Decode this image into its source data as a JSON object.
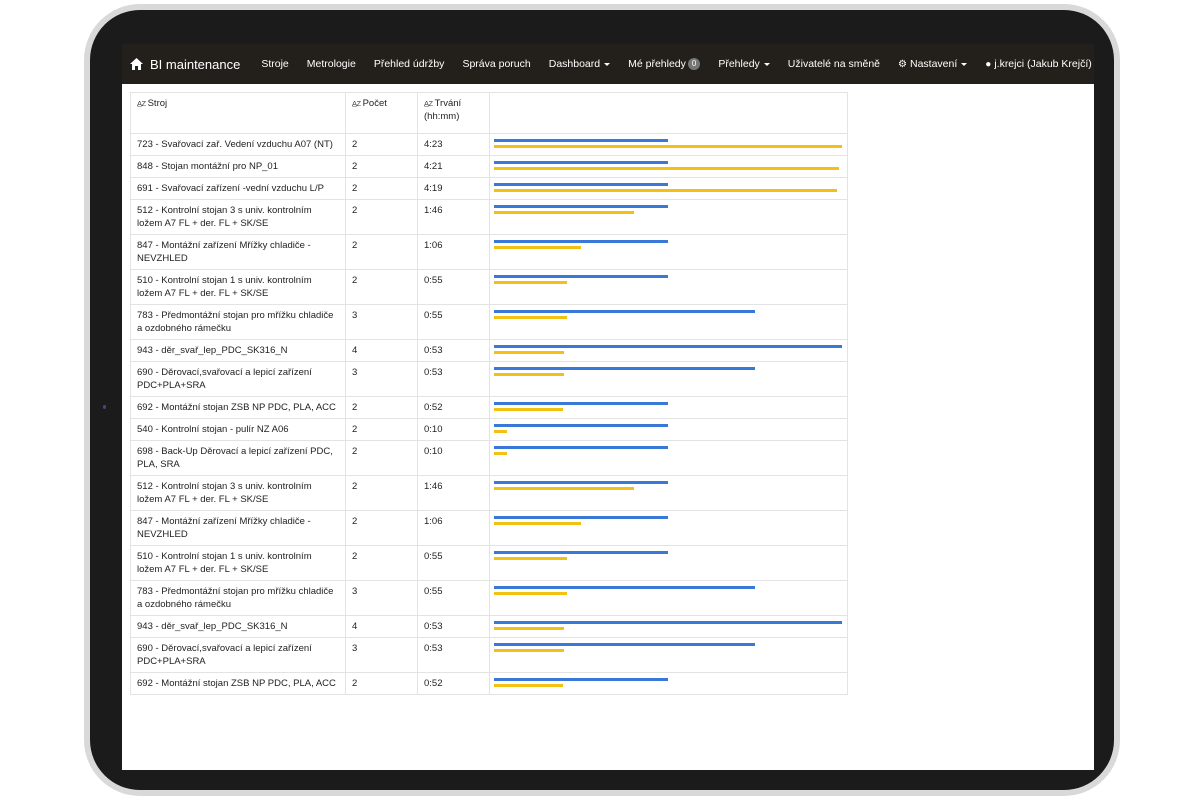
{
  "app": {
    "title": "BI maintenance"
  },
  "nav": {
    "items": [
      {
        "label": "Stroje"
      },
      {
        "label": "Metrologie"
      },
      {
        "label": "Přehled údržby"
      },
      {
        "label": "Správa poruch"
      },
      {
        "label": "Dashboard",
        "dropdown": true
      },
      {
        "label": "Mé přehledy",
        "badge": "0"
      },
      {
        "label": "Přehledy",
        "dropdown": true
      },
      {
        "label": "Uživatelé na směně"
      }
    ],
    "settings_label": "Nastavení",
    "user_label": "j.krejci (Jakub Krejčí)"
  },
  "table": {
    "sort_icon": "A̲Z",
    "headers": {
      "machine": "Stroj",
      "count": "Počet",
      "duration": "Trvání (hh:mm)"
    },
    "colors": {
      "count_bar": "#3a78d8",
      "duration_bar": "#f3c114"
    },
    "max_count": 4,
    "max_minutes": 263,
    "rows": [
      {
        "machine": "723 - Svařovací zař. Vedení vzduchu A07 (NT)",
        "count": "2",
        "duration": "4:23",
        "count_value": 2,
        "minutes": 263
      },
      {
        "machine": "848 - Stojan montážní pro NP_01",
        "count": "2",
        "duration": "4:21",
        "count_value": 2,
        "minutes": 261
      },
      {
        "machine": "691 - Svařovací zařízení -vední vzduchu L/P",
        "count": "2",
        "duration": "4:19",
        "count_value": 2,
        "minutes": 259
      },
      {
        "machine": "512 - Kontrolní stojan 3 s univ. kontrolním ložem A7 FL + der. FL + SK/SE",
        "count": "2",
        "duration": "1:46",
        "count_value": 2,
        "minutes": 106
      },
      {
        "machine": "847 - Montážní zařízení Mřížky chladiče - NEVZHLED",
        "count": "2",
        "duration": "1:06",
        "count_value": 2,
        "minutes": 66
      },
      {
        "machine": "510 - Kontrolní stojan 1 s univ. kontrolním ložem A7 FL + der. FL + SK/SE",
        "count": "2",
        "duration": "0:55",
        "count_value": 2,
        "minutes": 55
      },
      {
        "machine": "783 - Předmontážní stojan pro mřížku chladiče a ozdobného rámečku",
        "count": "3",
        "duration": "0:55",
        "count_value": 3,
        "minutes": 55
      },
      {
        "machine": "943 - děr_svař_lep_PDC_SK316_N",
        "count": "4",
        "duration": "0:53",
        "count_value": 4,
        "minutes": 53
      },
      {
        "machine": "690 - Děrovací,svařovací a lepicí zařízení PDC+PLA+SRA",
        "count": "3",
        "duration": "0:53",
        "count_value": 3,
        "minutes": 53
      },
      {
        "machine": "692 - Montážní stojan ZSB NP PDC, PLA, ACC",
        "count": "2",
        "duration": "0:52",
        "count_value": 2,
        "minutes": 52
      },
      {
        "machine": "540 - Kontrolní stojan - pulír NZ A06",
        "count": "2",
        "duration": "0:10",
        "count_value": 2,
        "minutes": 10
      },
      {
        "machine": "698 - Back-Up Děrovací a lepicí zařízení PDC, PLA, SRA",
        "count": "2",
        "duration": "0:10",
        "count_value": 2,
        "minutes": 10
      },
      {
        "machine": "512 - Kontrolní stojan 3 s univ. kontrolním ložem A7 FL + der. FL + SK/SE",
        "count": "2",
        "duration": "1:46",
        "count_value": 2,
        "minutes": 106
      },
      {
        "machine": "847 - Montážní zařízení Mřížky chladiče - NEVZHLED",
        "count": "2",
        "duration": "1:06",
        "count_value": 2,
        "minutes": 66
      },
      {
        "machine": "510 - Kontrolní stojan 1 s univ. kontrolním ložem A7 FL + der. FL + SK/SE",
        "count": "2",
        "duration": "0:55",
        "count_value": 2,
        "minutes": 55
      },
      {
        "machine": "783 - Předmontážní stojan pro mřížku chladiče a ozdobného rámečku",
        "count": "3",
        "duration": "0:55",
        "count_value": 3,
        "minutes": 55
      },
      {
        "machine": "943 - děr_svař_lep_PDC_SK316_N",
        "count": "4",
        "duration": "0:53",
        "count_value": 4,
        "minutes": 53
      },
      {
        "machine": "690 - Děrovací,svařovací a lepicí zařízení PDC+PLA+SRA",
        "count": "3",
        "duration": "0:53",
        "count_value": 3,
        "minutes": 53
      },
      {
        "machine": "692 - Montážní stojan ZSB NP PDC, PLA, ACC",
        "count": "2",
        "duration": "0:52",
        "count_value": 2,
        "minutes": 52
      }
    ]
  }
}
